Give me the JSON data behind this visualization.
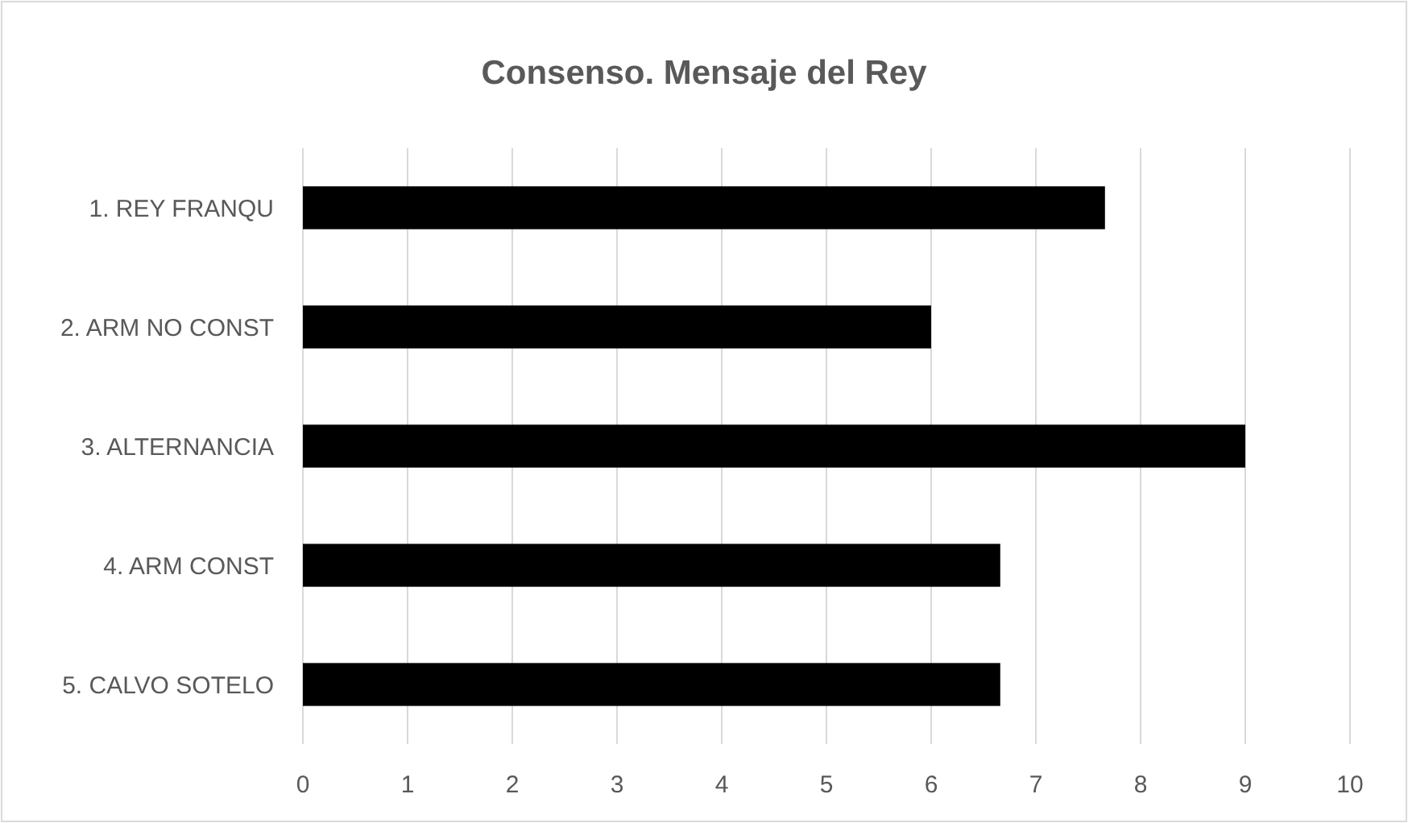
{
  "chart_data": {
    "type": "bar",
    "orientation": "horizontal",
    "title": "Consenso. Mensaje del Rey",
    "categories": [
      "1. REY FRANQU",
      "2. ARM NO CONST",
      "3. ALTERNANCIA",
      "4. ARM CONST",
      "5. CALVO SOTELO"
    ],
    "values": [
      7.66,
      6.0,
      9.0,
      6.66,
      6.66
    ],
    "color": "#000000",
    "xlim": [
      0,
      10
    ],
    "xticks": [
      0,
      1,
      2,
      3,
      4,
      5,
      6,
      7,
      8,
      9,
      10
    ],
    "grid": "x"
  }
}
